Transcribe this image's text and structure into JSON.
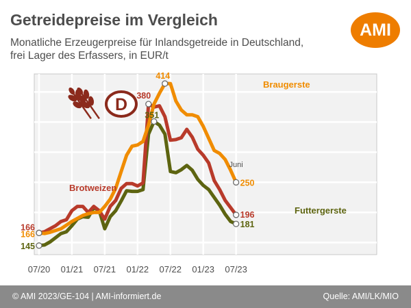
{
  "header": {
    "title": "Getreidepreise im Vergleich",
    "subtitle_line1": "Monatliche Erzeugerpreise für Inlandsgetreide in Deutschland,",
    "subtitle_line2": "frei Lager des Erfassers, in EUR/t",
    "logo_text": "AMI"
  },
  "footer": {
    "left": "© AMI 2023/GE-104 | AMI-informiert.de",
    "right": "Quelle: AMI/LK/MIO"
  },
  "colors": {
    "braugerste": "#f08c00",
    "brotweizen": "#b83a2a",
    "futtergerste": "#5d6410",
    "emblem": "#8b2a1c",
    "brand": "#ee7d00",
    "footer": "#8a8a8a"
  },
  "emblem": {
    "letter": "D",
    "icon": "wheat-ears-icon"
  },
  "chart_data": {
    "type": "line",
    "x_tick_labels": [
      "07/20",
      "01/21",
      "07/21",
      "01/22",
      "07/22",
      "01/23",
      "07/23"
    ],
    "x_start": "07/20",
    "x_end": "06/23",
    "ylim": [
      130,
      430
    ],
    "grid": true,
    "legend": "inline labels",
    "last_month_label": "Juni",
    "series": [
      {
        "name": "Braugerste",
        "color": "#f08c00",
        "start_label": "166",
        "end_label": "250",
        "peak_label": "414",
        "peak_index": 23,
        "values": [
          166,
          165,
          167,
          170,
          173,
          179,
          185,
          190,
          195,
          198,
          200,
          200,
          210,
          222,
          240,
          268,
          295,
          310,
          312,
          318,
          345,
          380,
          398,
          414,
          414,
          385,
          370,
          362,
          362,
          359,
          343,
          323,
          303,
          298,
          288,
          270,
          250
        ]
      },
      {
        "name": "Brotweizen",
        "color": "#b83a2a",
        "start_label": "166",
        "end_label": "196",
        "peak_label": "380",
        "peak_index": 20,
        "values": [
          166,
          168,
          173,
          178,
          185,
          188,
          203,
          210,
          210,
          200,
          210,
          203,
          189,
          210,
          220,
          240,
          248,
          248,
          244,
          249,
          380,
          375,
          377,
          359,
          320,
          321,
          324,
          338,
          325,
          305,
          295,
          282,
          253,
          238,
          220,
          208,
          196
        ]
      },
      {
        "name": "Futtergerste",
        "color": "#5d6410",
        "start_label": "145",
        "end_label": "181",
        "peak_label": "351",
        "peak_index": 21,
        "values": [
          145,
          146,
          151,
          158,
          165,
          168,
          178,
          189,
          193,
          192,
          208,
          203,
          173,
          193,
          203,
          219,
          236,
          235,
          235,
          238,
          330,
          351,
          345,
          330,
          268,
          266,
          271,
          278,
          270,
          255,
          245,
          238,
          225,
          212,
          197,
          185,
          181
        ]
      }
    ]
  }
}
